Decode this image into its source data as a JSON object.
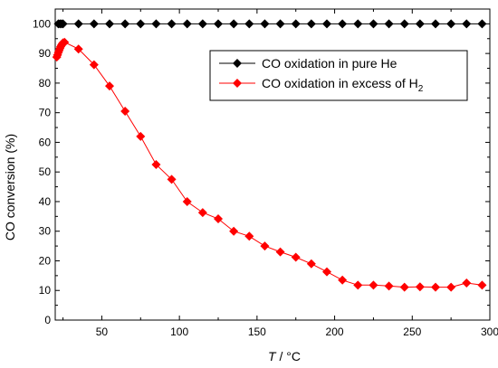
{
  "chart_data": {
    "type": "line",
    "xlabel": {
      "var": "T",
      "unit": " / °C"
    },
    "ylabel": "CO conversion (%)",
    "xlim": [
      20,
      300
    ],
    "ylim": [
      0,
      105
    ],
    "xticks": [
      50,
      100,
      150,
      200,
      250,
      300
    ],
    "yticks": [
      0,
      10,
      20,
      30,
      40,
      50,
      60,
      70,
      80,
      90,
      100
    ],
    "grid": false,
    "legend_position": "top-right",
    "series": [
      {
        "name": "CO oxidation in pure He",
        "color": "#000000",
        "marker": "diamond",
        "x": [
          22,
          23,
          24,
          25,
          35,
          45,
          55,
          65,
          75,
          85,
          95,
          105,
          115,
          125,
          135,
          145,
          155,
          165,
          175,
          185,
          195,
          205,
          215,
          225,
          235,
          245,
          255,
          265,
          275,
          285,
          295
        ],
        "y": [
          100,
          100,
          100,
          100,
          100,
          100,
          100,
          100,
          100,
          100,
          100,
          100,
          100,
          100,
          100,
          100,
          100,
          100,
          100,
          100,
          100,
          100,
          100,
          100,
          100,
          100,
          100,
          100,
          100,
          100,
          100
        ]
      },
      {
        "name": "CO oxidation in excess of H",
        "name_subscript": "2",
        "color": "#ff0000",
        "marker": "diamond",
        "x": [
          21,
          21.5,
          22,
          22.5,
          23,
          23.5,
          24,
          24.5,
          25,
          26,
          35,
          45,
          55,
          65,
          75,
          85,
          95,
          105,
          115,
          125,
          135,
          145,
          155,
          165,
          175,
          185,
          195,
          205,
          215,
          225,
          235,
          245,
          255,
          265,
          275,
          285,
          295
        ],
        "y": [
          88.8,
          89.5,
          90.3,
          91.0,
          91.7,
          92.3,
          92.8,
          93.2,
          93.6,
          93.8,
          91.5,
          86.2,
          79.0,
          70.5,
          62.0,
          52.5,
          47.5,
          40.0,
          36.3,
          34.2,
          30.0,
          28.3,
          25.0,
          23.0,
          21.2,
          19.0,
          16.3,
          13.5,
          11.8,
          11.8,
          11.5,
          11.1,
          11.2,
          11.1,
          11.1,
          12.5,
          11.8
        ]
      }
    ]
  }
}
